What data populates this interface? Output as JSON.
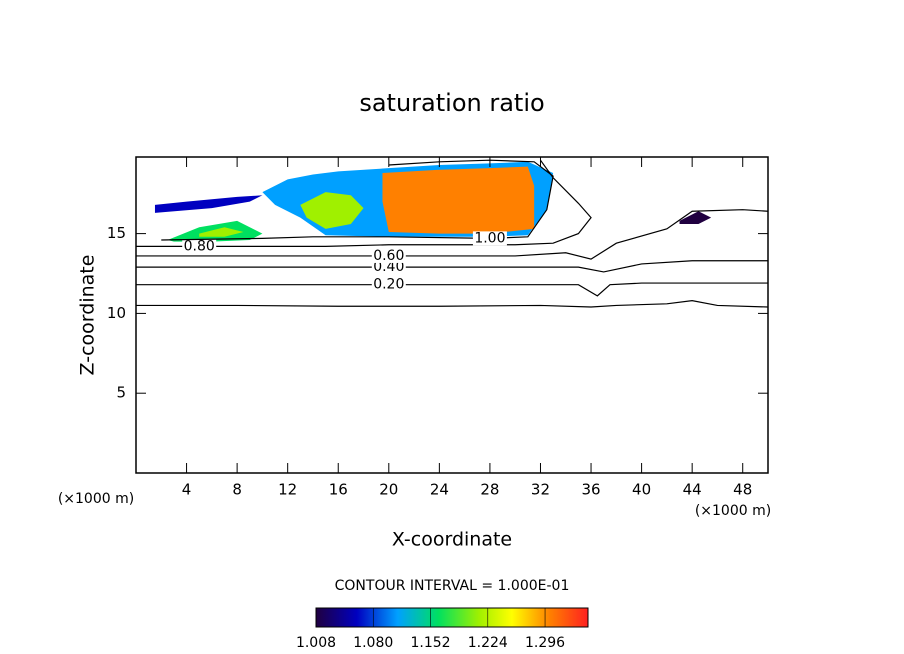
{
  "chart_data": {
    "type": "contour",
    "title": "saturation ratio",
    "x_label": "X-coordinate",
    "y_label": "Z-coordinate",
    "x_unit": "(×1000 m)",
    "y_unit": "(×1000 m)",
    "contour_interval": "CONTOUR INTERVAL = 1.000E-01",
    "xlim": [
      0,
      50
    ],
    "ylim": [
      0,
      19.8
    ],
    "xticks": [
      4,
      8,
      12,
      16,
      20,
      24,
      28,
      32,
      36,
      40,
      44,
      48
    ],
    "yticks": [
      5,
      10,
      15
    ],
    "clim": [
      1.008,
      1.35
    ],
    "cticks": [
      1.008,
      {
        "value": 1.08,
        "label": "1.080"
      },
      1.152,
      1.224,
      1.296
    ],
    "filled_regions": [
      {
        "value": 1.12,
        "x": [
          10,
          12,
          14,
          16,
          20,
          24,
          28,
          31,
          33,
          32.5,
          31,
          28,
          20,
          15,
          13,
          11
        ],
        "y": [
          17.6,
          18.4,
          18.7,
          18.9,
          19.1,
          19.3,
          19.4,
          19.5,
          18.8,
          16.5,
          14.9,
          14.8,
          14.8,
          14.9,
          16,
          16.8
        ]
      },
      {
        "value": 1.3,
        "x": [
          19.5,
          24,
          28,
          31,
          31.5,
          31.5,
          28,
          24,
          20,
          19.5
        ],
        "y": [
          18.8,
          19,
          19.1,
          19.2,
          18,
          15.3,
          15,
          15,
          15.1,
          17
        ]
      },
      {
        "value": 1.22,
        "x": [
          13,
          15,
          17,
          18,
          17,
          15,
          13.5
        ],
        "y": [
          16.8,
          17.6,
          17.4,
          16.6,
          15.6,
          15.3,
          16
        ]
      },
      {
        "value": 1.05,
        "x": [
          1.5,
          6,
          9,
          10,
          8,
          4,
          1.5
        ],
        "y": [
          16.3,
          16.6,
          17,
          17.4,
          17.3,
          17,
          16.8
        ]
      },
      {
        "value": 1.14,
        "x": [
          2.5,
          5,
          8,
          10,
          9,
          6,
          3
        ],
        "y": [
          14.6,
          15.4,
          15.8,
          15,
          14.6,
          14.5,
          14.5
        ]
      },
      {
        "value": 1.22,
        "x": [
          5,
          7,
          8.5,
          7,
          5
        ],
        "y": [
          15,
          15.4,
          15.1,
          14.8,
          14.8
        ]
      },
      {
        "value": 1.03,
        "x": [
          43,
          44.5,
          45.5,
          44.5,
          43
        ],
        "y": [
          15.8,
          16.4,
          16,
          15.6,
          15.6
        ]
      }
    ],
    "contours": [
      {
        "level": 0.1,
        "x": [
          0,
          8,
          16,
          24,
          32,
          36,
          38,
          42,
          44,
          46,
          50
        ],
        "y": [
          10.5,
          10.5,
          10.45,
          10.45,
          10.5,
          10.4,
          10.5,
          10.6,
          10.8,
          10.5,
          10.4
        ]
      },
      {
        "level": 0.2,
        "level_label": "0.20",
        "x": [
          0,
          10,
          20,
          30,
          35,
          36.5,
          37.5,
          40,
          50
        ],
        "y": [
          11.8,
          11.8,
          11.8,
          11.8,
          11.8,
          11.1,
          11.8,
          11.9,
          11.9
        ]
      },
      {
        "level": 0.4,
        "level_label": "0.40",
        "x": [
          0,
          10,
          20,
          30,
          35,
          37,
          40,
          44,
          48,
          50
        ],
        "y": [
          12.9,
          12.9,
          12.9,
          12.9,
          12.9,
          12.6,
          13.1,
          13.3,
          13.3,
          13.3
        ]
      },
      {
        "level": 0.6,
        "level_label": "0.60",
        "x": [
          0,
          10,
          20,
          30,
          34,
          36,
          38,
          42,
          44,
          48,
          50
        ],
        "y": [
          13.6,
          13.6,
          13.6,
          13.6,
          13.8,
          13.4,
          14.4,
          15.3,
          16.4,
          16.5,
          16.4
        ]
      },
      {
        "level": 0.8,
        "level_label": "0.80",
        "x": [
          0,
          5,
          10,
          15,
          20,
          30,
          33,
          35,
          36,
          35,
          33,
          32
        ],
        "y": [
          14.2,
          14.2,
          14.2,
          14.2,
          14.3,
          14.3,
          14.4,
          15,
          16,
          16.9,
          18.5,
          19.6
        ]
      },
      {
        "level": 1.0,
        "level_label": "1.00",
        "x": [
          2,
          10,
          14,
          20,
          28,
          31,
          32.5,
          33,
          31.5,
          28,
          24,
          20
        ],
        "y": [
          14.6,
          14.7,
          14.8,
          14.8,
          14.7,
          14.8,
          16.5,
          18.6,
          19.5,
          19.6,
          19.5,
          19.3
        ]
      }
    ]
  }
}
